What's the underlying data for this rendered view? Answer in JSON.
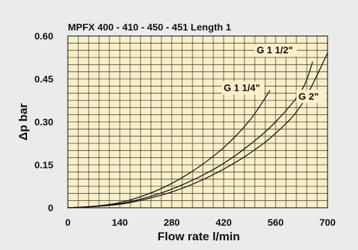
{
  "chart_data": {
    "type": "line",
    "title": "MPFX 400 - 410 - 450 - 451 Length 1",
    "xlabel": "Flow rate l/min",
    "ylabel": "Δp bar",
    "xlim": [
      0,
      700
    ],
    "ylim": [
      0,
      0.6
    ],
    "x_ticks": [
      "0",
      "140",
      "280",
      "420",
      "560",
      "700"
    ],
    "y_ticks": [
      "0",
      "0.15",
      "0.30",
      "0.45",
      "0.60"
    ],
    "grid": true,
    "series": [
      {
        "name": "G 1 1/4\"",
        "x": [
          0,
          70,
          140,
          210,
          280,
          350,
          420,
          490,
          545
        ],
        "y": [
          0,
          0.005,
          0.018,
          0.045,
          0.085,
          0.14,
          0.21,
          0.305,
          0.41
        ]
      },
      {
        "name": "G 1 1/2\"",
        "x": [
          0,
          70,
          140,
          210,
          280,
          350,
          420,
          490,
          560,
          630,
          660
        ],
        "y": [
          0,
          0.005,
          0.014,
          0.035,
          0.065,
          0.105,
          0.155,
          0.22,
          0.3,
          0.41,
          0.51
        ]
      },
      {
        "name": "G 2\"",
        "x": [
          0,
          70,
          140,
          210,
          280,
          350,
          420,
          490,
          560,
          630,
          700
        ],
        "y": [
          0,
          0.004,
          0.012,
          0.03,
          0.055,
          0.09,
          0.135,
          0.19,
          0.26,
          0.36,
          0.54
        ]
      }
    ]
  }
}
